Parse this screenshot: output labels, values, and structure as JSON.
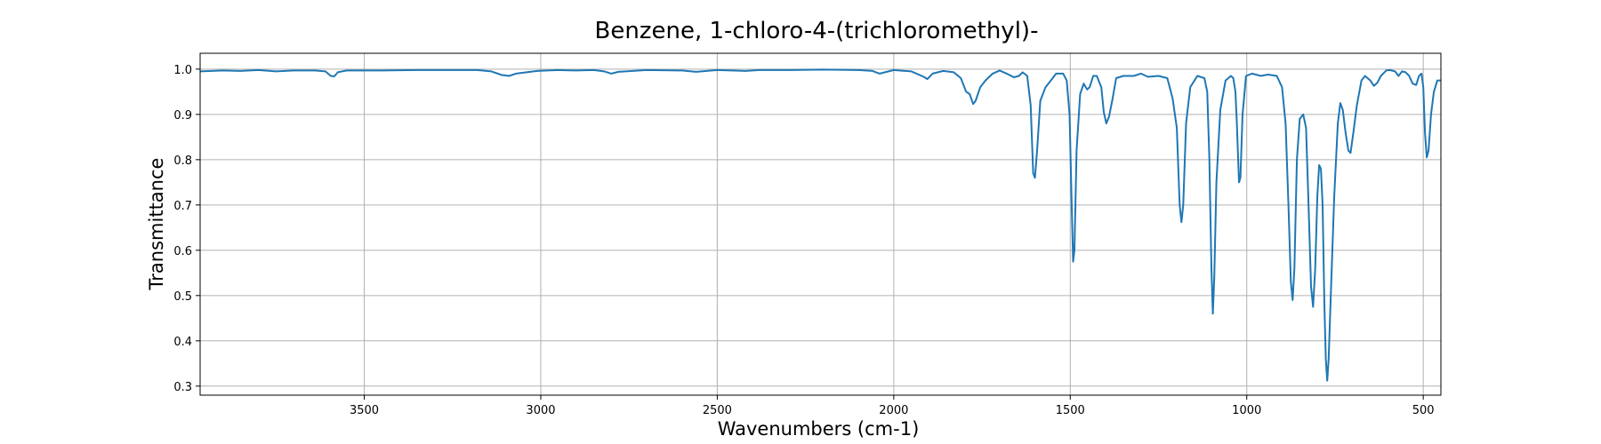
{
  "chart_data": {
    "type": "line",
    "title": "Benzene, 1-chloro-4-(trichloromethyl)-",
    "xlabel": "Wavenumbers (cm-1)",
    "ylabel": "Transmittance",
    "xlim": [
      3965,
      450
    ],
    "ylim": [
      0.28,
      1.035
    ],
    "x_inverted": true,
    "grid": true,
    "xticks": [
      3500,
      3000,
      2500,
      2000,
      1500,
      1000,
      500
    ],
    "yticks": [
      0.3,
      0.4,
      0.5,
      0.6,
      0.7,
      0.8,
      0.9,
      1.0
    ],
    "series": [
      {
        "color": "#1f77b4",
        "points": [
          [
            3965,
            0.995
          ],
          [
            3900,
            0.997
          ],
          [
            3850,
            0.996
          ],
          [
            3800,
            0.998
          ],
          [
            3750,
            0.995
          ],
          [
            3700,
            0.997
          ],
          [
            3640,
            0.997
          ],
          [
            3610,
            0.995
          ],
          [
            3595,
            0.985
          ],
          [
            3585,
            0.984
          ],
          [
            3575,
            0.993
          ],
          [
            3550,
            0.997
          ],
          [
            3450,
            0.997
          ],
          [
            3350,
            0.998
          ],
          [
            3250,
            0.998
          ],
          [
            3180,
            0.998
          ],
          [
            3140,
            0.995
          ],
          [
            3110,
            0.987
          ],
          [
            3090,
            0.985
          ],
          [
            3070,
            0.99
          ],
          [
            3040,
            0.993
          ],
          [
            3010,
            0.996
          ],
          [
            2950,
            0.998
          ],
          [
            2900,
            0.997
          ],
          [
            2850,
            0.998
          ],
          [
            2820,
            0.995
          ],
          [
            2800,
            0.99
          ],
          [
            2780,
            0.994
          ],
          [
            2700,
            0.998
          ],
          [
            2600,
            0.997
          ],
          [
            2560,
            0.994
          ],
          [
            2500,
            0.998
          ],
          [
            2420,
            0.996
          ],
          [
            2380,
            0.998
          ],
          [
            2300,
            0.998
          ],
          [
            2200,
            0.999
          ],
          [
            2100,
            0.998
          ],
          [
            2060,
            0.996
          ],
          [
            2040,
            0.99
          ],
          [
            2000,
            0.998
          ],
          [
            1950,
            0.995
          ],
          [
            1915,
            0.983
          ],
          [
            1905,
            0.978
          ],
          [
            1890,
            0.99
          ],
          [
            1860,
            0.996
          ],
          [
            1830,
            0.993
          ],
          [
            1810,
            0.98
          ],
          [
            1795,
            0.95
          ],
          [
            1785,
            0.945
          ],
          [
            1775,
            0.923
          ],
          [
            1768,
            0.93
          ],
          [
            1755,
            0.96
          ],
          [
            1740,
            0.975
          ],
          [
            1720,
            0.99
          ],
          [
            1700,
            0.997
          ],
          [
            1680,
            0.99
          ],
          [
            1660,
            0.982
          ],
          [
            1645,
            0.985
          ],
          [
            1635,
            0.993
          ],
          [
            1622,
            0.985
          ],
          [
            1612,
            0.92
          ],
          [
            1605,
            0.77
          ],
          [
            1600,
            0.76
          ],
          [
            1594,
            0.82
          ],
          [
            1585,
            0.93
          ],
          [
            1570,
            0.96
          ],
          [
            1555,
            0.975
          ],
          [
            1540,
            0.99
          ],
          [
            1520,
            0.99
          ],
          [
            1510,
            0.975
          ],
          [
            1502,
            0.9
          ],
          [
            1496,
            0.7
          ],
          [
            1492,
            0.575
          ],
          [
            1488,
            0.6
          ],
          [
            1482,
            0.82
          ],
          [
            1472,
            0.945
          ],
          [
            1462,
            0.968
          ],
          [
            1452,
            0.955
          ],
          [
            1445,
            0.96
          ],
          [
            1435,
            0.985
          ],
          [
            1425,
            0.985
          ],
          [
            1412,
            0.96
          ],
          [
            1405,
            0.905
          ],
          [
            1398,
            0.88
          ],
          [
            1390,
            0.895
          ],
          [
            1380,
            0.935
          ],
          [
            1370,
            0.98
          ],
          [
            1350,
            0.985
          ],
          [
            1320,
            0.985
          ],
          [
            1300,
            0.99
          ],
          [
            1280,
            0.983
          ],
          [
            1250,
            0.985
          ],
          [
            1225,
            0.98
          ],
          [
            1210,
            0.935
          ],
          [
            1198,
            0.87
          ],
          [
            1190,
            0.7
          ],
          [
            1185,
            0.662
          ],
          [
            1180,
            0.7
          ],
          [
            1172,
            0.88
          ],
          [
            1160,
            0.96
          ],
          [
            1140,
            0.985
          ],
          [
            1120,
            0.98
          ],
          [
            1112,
            0.95
          ],
          [
            1106,
            0.8
          ],
          [
            1100,
            0.56
          ],
          [
            1096,
            0.46
          ],
          [
            1092,
            0.54
          ],
          [
            1086,
            0.75
          ],
          [
            1075,
            0.91
          ],
          [
            1060,
            0.975
          ],
          [
            1045,
            0.985
          ],
          [
            1038,
            0.98
          ],
          [
            1032,
            0.95
          ],
          [
            1028,
            0.88
          ],
          [
            1022,
            0.75
          ],
          [
            1018,
            0.76
          ],
          [
            1012,
            0.9
          ],
          [
            1002,
            0.985
          ],
          [
            985,
            0.99
          ],
          [
            960,
            0.985
          ],
          [
            940,
            0.988
          ],
          [
            915,
            0.985
          ],
          [
            900,
            0.96
          ],
          [
            890,
            0.88
          ],
          [
            882,
            0.7
          ],
          [
            875,
            0.53
          ],
          [
            870,
            0.49
          ],
          [
            865,
            0.56
          ],
          [
            858,
            0.8
          ],
          [
            850,
            0.89
          ],
          [
            840,
            0.9
          ],
          [
            832,
            0.87
          ],
          [
            825,
            0.7
          ],
          [
            818,
            0.52
          ],
          [
            812,
            0.475
          ],
          [
            806,
            0.56
          ],
          [
            800,
            0.72
          ],
          [
            795,
            0.788
          ],
          [
            790,
            0.78
          ],
          [
            785,
            0.7
          ],
          [
            780,
            0.48
          ],
          [
            776,
            0.36
          ],
          [
            772,
            0.312
          ],
          [
            768,
            0.36
          ],
          [
            762,
            0.5
          ],
          [
            752,
            0.72
          ],
          [
            742,
            0.88
          ],
          [
            735,
            0.925
          ],
          [
            728,
            0.91
          ],
          [
            720,
            0.86
          ],
          [
            712,
            0.82
          ],
          [
            706,
            0.815
          ],
          [
            698,
            0.86
          ],
          [
            688,
            0.92
          ],
          [
            675,
            0.975
          ],
          [
            665,
            0.985
          ],
          [
            650,
            0.975
          ],
          [
            640,
            0.963
          ],
          [
            630,
            0.97
          ],
          [
            620,
            0.985
          ],
          [
            605,
            0.997
          ],
          [
            595,
            0.998
          ],
          [
            580,
            0.995
          ],
          [
            570,
            0.985
          ],
          [
            560,
            0.995
          ],
          [
            550,
            0.993
          ],
          [
            540,
            0.985
          ],
          [
            530,
            0.968
          ],
          [
            520,
            0.965
          ],
          [
            512,
            0.985
          ],
          [
            505,
            0.99
          ],
          [
            500,
            0.96
          ],
          [
            495,
            0.86
          ],
          [
            490,
            0.805
          ],
          [
            485,
            0.82
          ],
          [
            478,
            0.9
          ],
          [
            470,
            0.95
          ],
          [
            460,
            0.975
          ],
          [
            450,
            0.975
          ]
        ]
      }
    ]
  }
}
